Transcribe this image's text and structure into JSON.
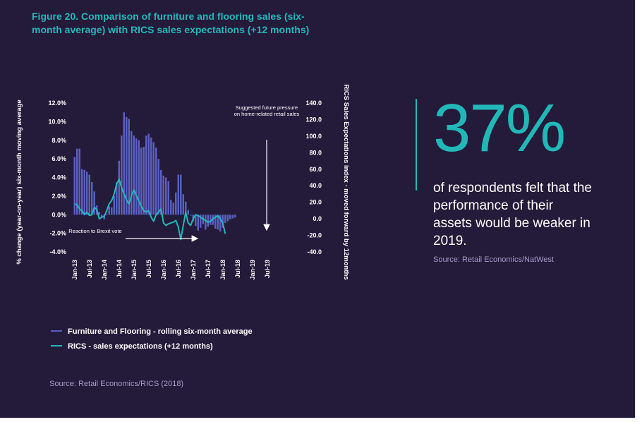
{
  "title": "Figure 20. Comparison of furniture and flooring sales (six-month average) with RICS sales expectations (+12 months)",
  "stat": {
    "value": "37%",
    "description": "of respondents felt that the performance of their assets would be weaker in 2019.",
    "source": "Source: Retail Economics/NatWest"
  },
  "source": "Source: Retail Economics/RICS (2018)",
  "colors": {
    "background": "#241a3a",
    "accent": "#22b8b8",
    "bars": "#5a5fbe",
    "text": "#ffffff",
    "muted": "#a99bc7"
  },
  "chart_data": {
    "type": "bar",
    "y_left_label": "% change (year-on-year) six-month moving average",
    "y_right_label": "RICS Sales Expectations index - moved forward by 12months",
    "y_left_ticks": [
      "12.0%",
      "10.0%",
      "8.0%",
      "6.0%",
      "4.0%",
      "2.0%",
      "0.0%",
      "-2.0%",
      "-4.0%"
    ],
    "y_right_ticks": [
      "140.0",
      "120.0",
      "100.0",
      "80.0",
      "60.0",
      "40.0",
      "20.0",
      "0.0",
      "-20.0",
      "-40.0"
    ],
    "x_ticks": [
      "Jan-13",
      "Jul-13",
      "Jan-14",
      "Jul-14",
      "Jan-15",
      "Jul-15",
      "Jan-16",
      "Jul-16",
      "Jan-17",
      "Jul-17",
      "Jan-18",
      "Jul-18",
      "Jan-19",
      "Jul-19"
    ],
    "ylim_left": [
      -4,
      12
    ],
    "ylim_right": [
      -40,
      140
    ],
    "x_start": "Jan-13",
    "months": 80,
    "series": [
      {
        "name": "Furniture and Flooring - rolling six-month average",
        "type": "bar",
        "axis": "left",
        "values": [
          6.2,
          7.1,
          7.1,
          4.9,
          4.8,
          4.6,
          4.3,
          3.5,
          2.5,
          1.0,
          0.3,
          -0.3,
          -0.5,
          0.1,
          0.9,
          0.8,
          2.0,
          3.5,
          5.8,
          8.5,
          11.0,
          10.5,
          10.3,
          9.0,
          8.5,
          8.2,
          8.0,
          7.2,
          7.3,
          8.5,
          8.7,
          8.3,
          7.8,
          7.2,
          6.0,
          4.8,
          4.2,
          4.0,
          3.6,
          1.6,
          1.3,
          2.4,
          4.3,
          4.3,
          2.2,
          1.4,
          0.5,
          -0.1,
          -0.7,
          -1.2,
          -1.7,
          -1.4,
          -1.0,
          -1.6,
          -1.3,
          -1.1,
          -1.1,
          -1.5,
          -1.6,
          -1.8,
          -1.4,
          -0.9,
          -0.7,
          -0.5,
          -0.4,
          -0.3
        ]
      },
      {
        "name": "RICS - sales expectations (+12 months)",
        "type": "line",
        "axis": "right",
        "values": [
          18,
          17,
          12,
          10,
          5,
          8,
          4,
          5,
          14,
          11,
          0,
          2,
          3,
          10,
          18,
          22,
          30,
          42,
          48,
          38,
          30,
          23,
          18,
          28,
          35,
          28,
          22,
          15,
          10,
          8,
          10,
          2,
          -3,
          5,
          8,
          12,
          -5,
          -8,
          -6,
          -5,
          -4,
          -2,
          -10,
          -25,
          -8,
          8,
          -5,
          -8,
          0,
          5,
          4,
          2,
          0,
          -2,
          -4,
          -3,
          0,
          2,
          4,
          0,
          -5,
          -18
        ]
      }
    ],
    "annotations": [
      {
        "text": "Reaction to Brexit vote"
      },
      {
        "text": "Suggested future pressure on home-related retail sales"
      }
    ],
    "legend_position": "bottom-left"
  }
}
